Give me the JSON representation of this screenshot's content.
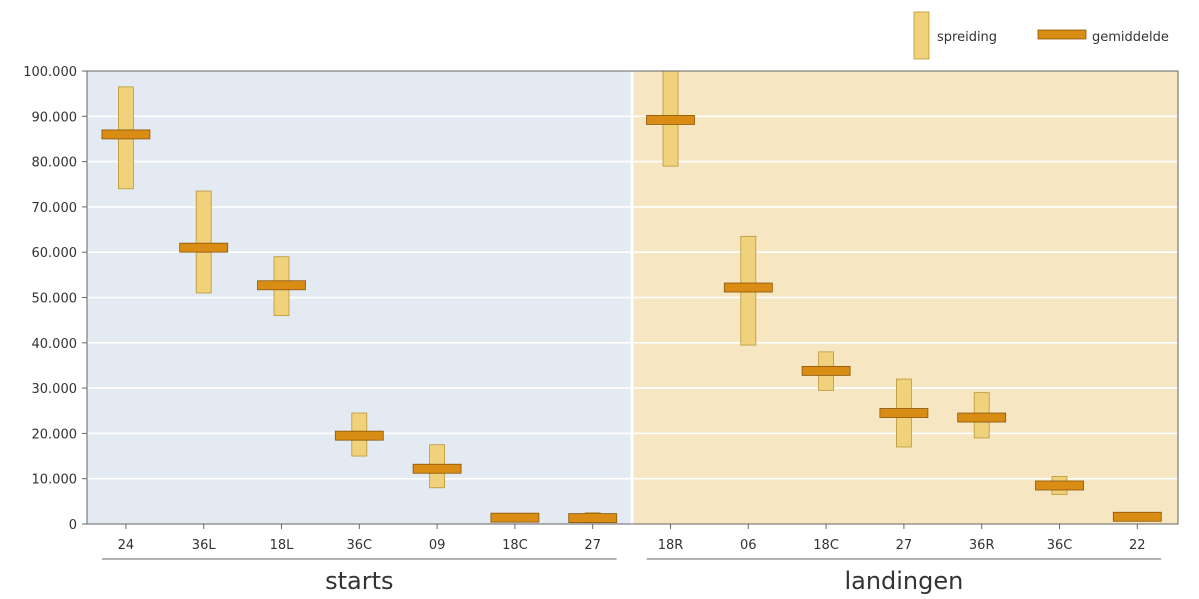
{
  "chart_data": {
    "type": "range-bar",
    "ylim": [
      0,
      100000
    ],
    "y_ticks": [
      {
        "value": 0,
        "label": "0"
      },
      {
        "value": 10000,
        "label": "10.000"
      },
      {
        "value": 20000,
        "label": "20.000"
      },
      {
        "value": 30000,
        "label": "30.000"
      },
      {
        "value": 40000,
        "label": "40.000"
      },
      {
        "value": 50000,
        "label": "50.000"
      },
      {
        "value": 60000,
        "label": "60.000"
      },
      {
        "value": 70000,
        "label": "70.000"
      },
      {
        "value": 80000,
        "label": "80.000"
      },
      {
        "value": 90000,
        "label": "90.000"
      },
      {
        "value": 100000,
        "label": "100.000"
      }
    ],
    "grid": true,
    "legend_position": "top-right",
    "legend": {
      "range": "spreiding",
      "mean": "gemiddelde"
    },
    "colors": {
      "starts_background": "#e3eaf2",
      "landingen_background": "#f6e6c2",
      "range_fill": "#f0d27d",
      "range_stroke": "#b89838",
      "mean_fill": "#d98d14",
      "mean_stroke": "#8a5508",
      "axis": "#666666",
      "text": "#333333"
    },
    "groups": [
      {
        "name": "starts",
        "runways": [
          {
            "label": "24",
            "min": 74000,
            "max": 96500,
            "mean": 86000
          },
          {
            "label": "36L",
            "min": 51000,
            "max": 73500,
            "mean": 61000
          },
          {
            "label": "18L",
            "min": 46000,
            "max": 59000,
            "mean": 52700
          },
          {
            "label": "36C",
            "min": 15000,
            "max": 24500,
            "mean": 19500
          },
          {
            "label": "09",
            "min": 8000,
            "max": 17500,
            "mean": 12200
          },
          {
            "label": "18C",
            "min": 700,
            "max": 2200,
            "mean": 1400
          },
          {
            "label": "27",
            "min": 300,
            "max": 2500,
            "mean": 1300
          }
        ]
      },
      {
        "name": "landingen",
        "runways": [
          {
            "label": "18R",
            "min": 79000,
            "max": 100000,
            "mean": 89200
          },
          {
            "label": "06",
            "min": 39500,
            "max": 63500,
            "mean": 52200
          },
          {
            "label": "18C",
            "min": 29500,
            "max": 38000,
            "mean": 33800
          },
          {
            "label": "27",
            "min": 17000,
            "max": 32000,
            "mean": 24500
          },
          {
            "label": "36R",
            "min": 19000,
            "max": 29000,
            "mean": 23500
          },
          {
            "label": "36C",
            "min": 6500,
            "max": 10500,
            "mean": 8500
          },
          {
            "label": "22",
            "min": 1000,
            "max": 2200,
            "mean": 1600
          }
        ]
      }
    ]
  }
}
